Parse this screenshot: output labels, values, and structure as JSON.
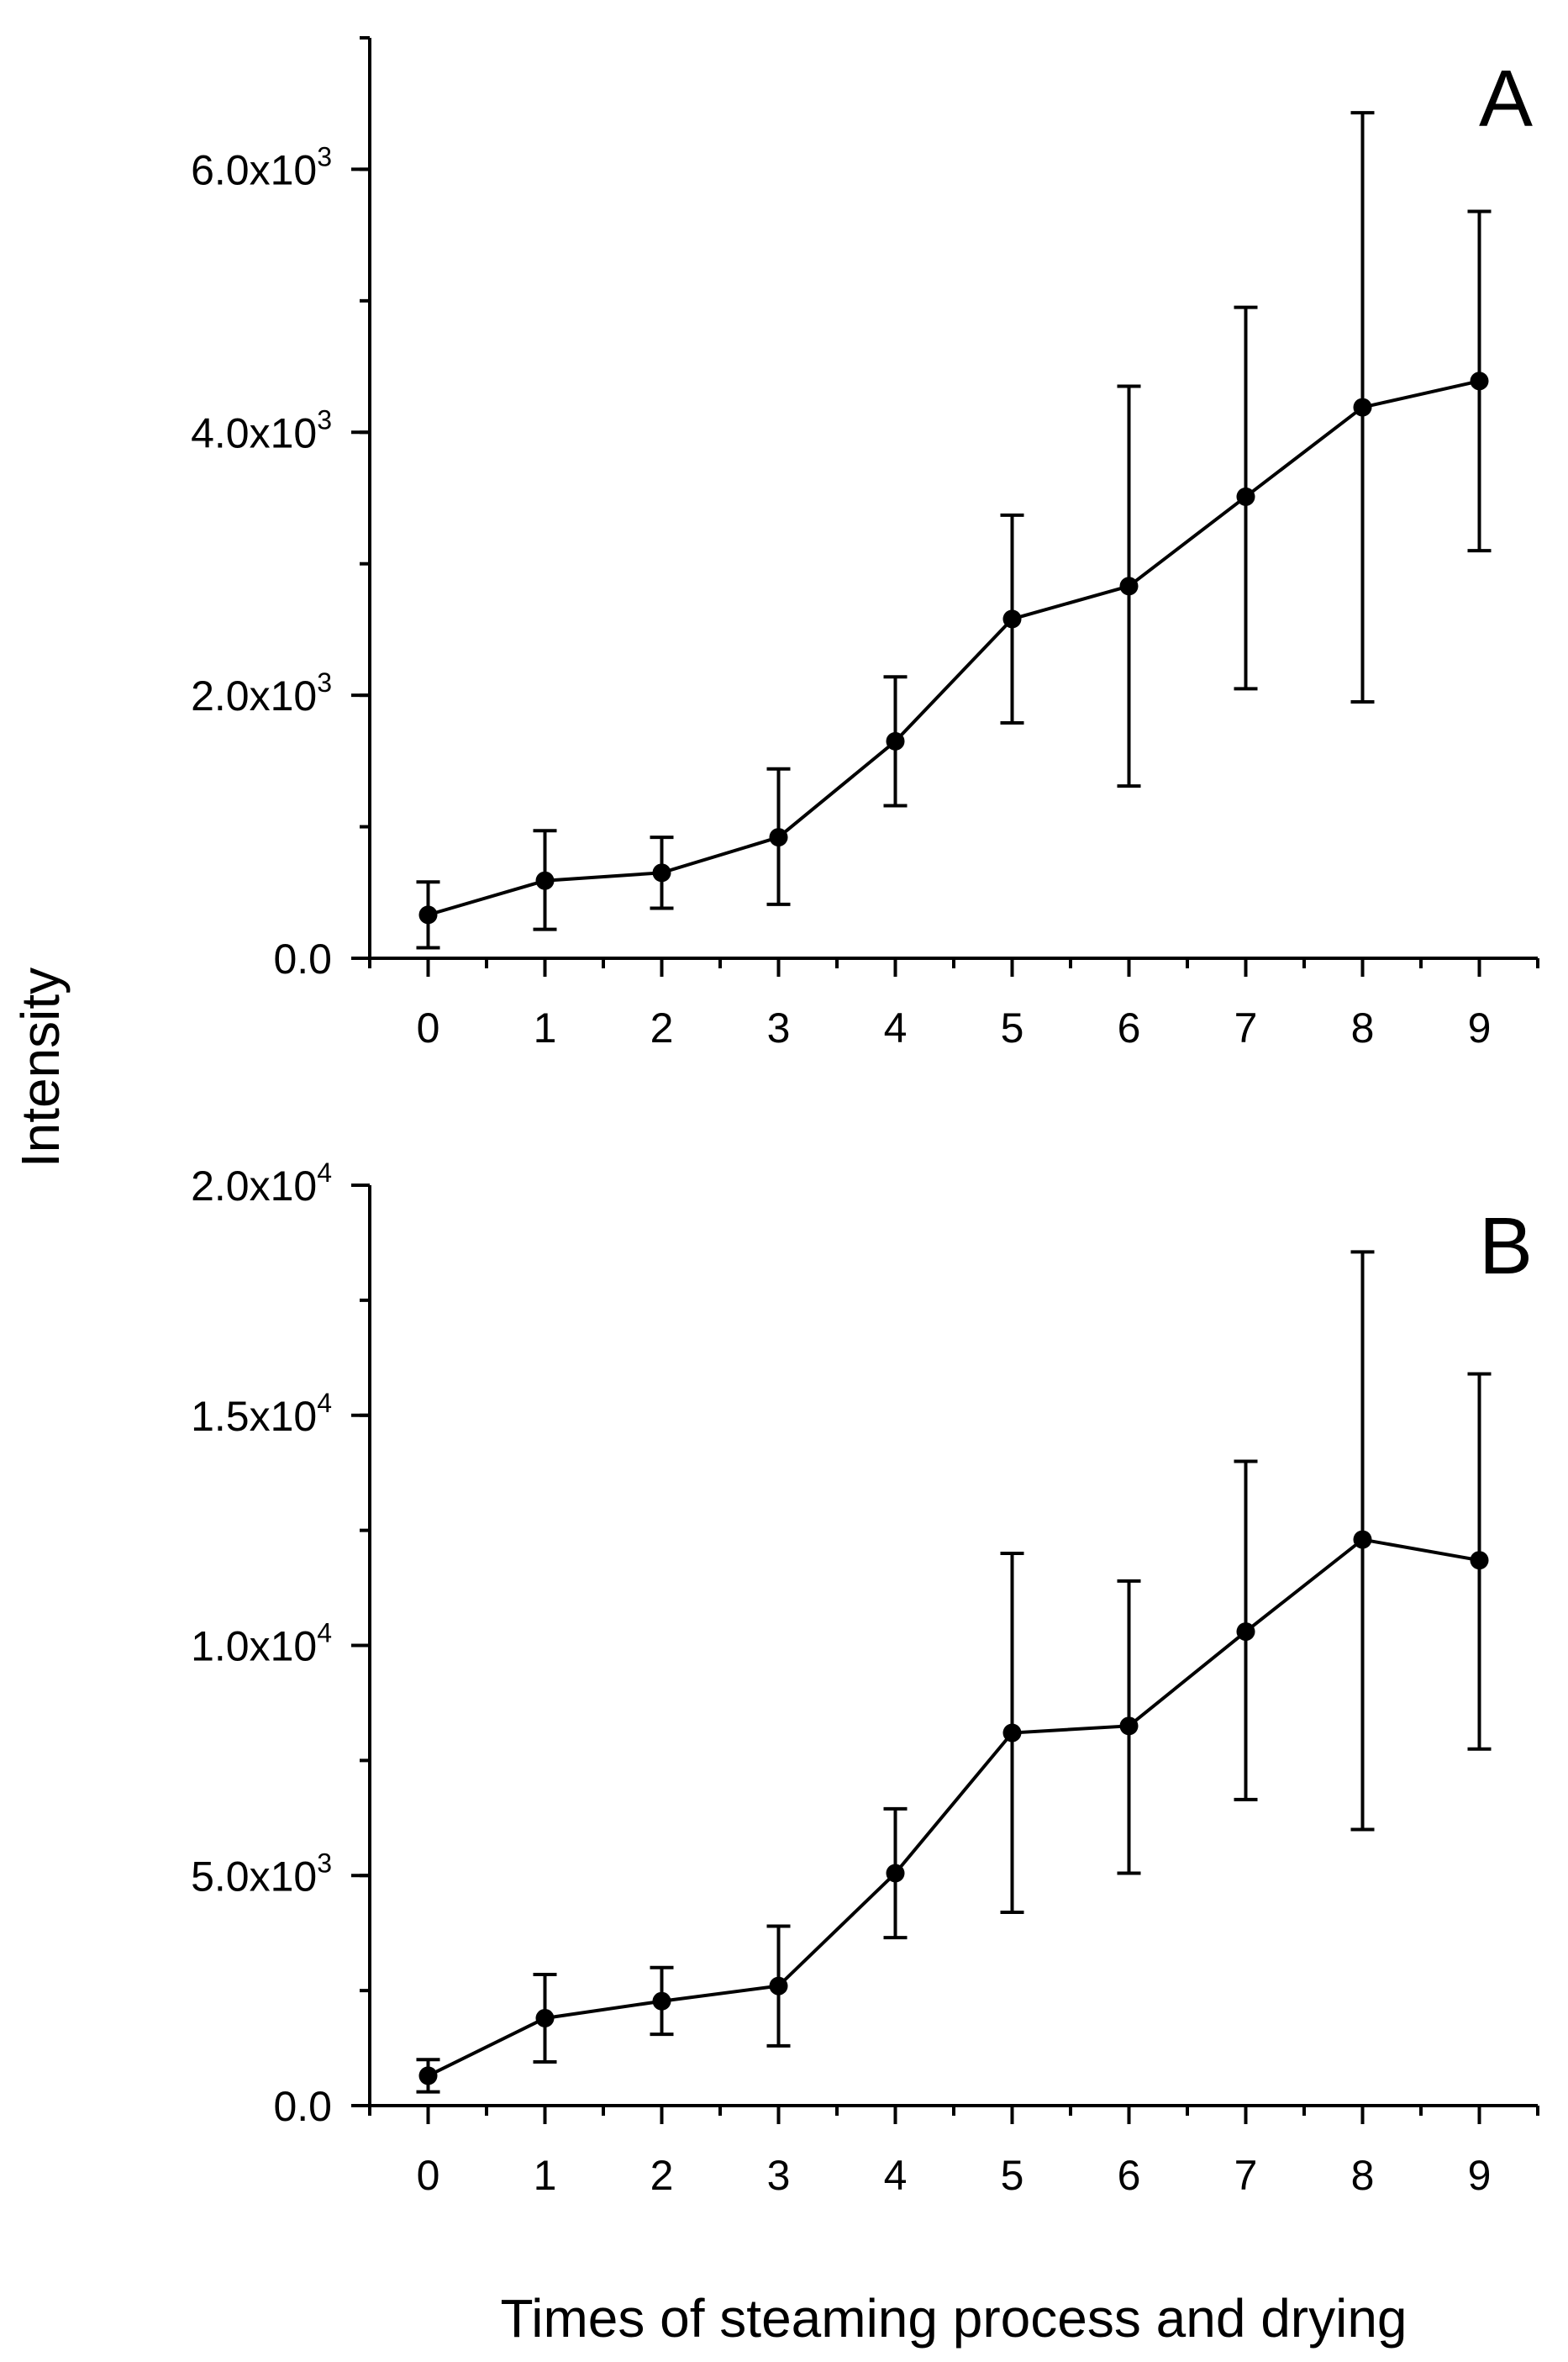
{
  "chart_data": [
    {
      "type": "line",
      "panel_label": "A",
      "x": [
        0,
        1,
        2,
        3,
        4,
        5,
        6,
        7,
        8,
        9
      ],
      "xlim": [
        -0.5,
        9.5
      ],
      "x_ticks": [
        "0",
        "1",
        "2",
        "3",
        "4",
        "5",
        "6",
        "7",
        "8",
        "9"
      ],
      "ylim": [
        0,
        7000
      ],
      "y_ticks": [
        {
          "value": 0,
          "mantissa": "0.0",
          "exp": ""
        },
        {
          "value": 2000,
          "mantissa": "2.0x10",
          "exp": "3"
        },
        {
          "value": 4000,
          "mantissa": "4.0x10",
          "exp": "3"
        },
        {
          "value": 6000,
          "mantissa": "6.0x10",
          "exp": "3"
        }
      ],
      "y_minor_step": 1000,
      "series": [
        {
          "values": [
            330,
            590,
            650,
            920,
            1650,
            2580,
            2830,
            3510,
            4190,
            4390
          ],
          "error_low": [
            80,
            220,
            380,
            410,
            1160,
            1790,
            1310,
            2050,
            1950,
            3100
          ],
          "error_high": [
            580,
            970,
            920,
            1440,
            2140,
            3370,
            4350,
            4950,
            6430,
            5680
          ]
        }
      ]
    },
    {
      "type": "line",
      "panel_label": "B",
      "x": [
        0,
        1,
        2,
        3,
        4,
        5,
        6,
        7,
        8,
        9
      ],
      "xlim": [
        -0.5,
        9.5
      ],
      "x_ticks": [
        "0",
        "1",
        "2",
        "3",
        "4",
        "5",
        "6",
        "7",
        "8",
        "9"
      ],
      "ylim": [
        0,
        20000
      ],
      "y_ticks": [
        {
          "value": 0,
          "mantissa": "0.0",
          "exp": ""
        },
        {
          "value": 5000,
          "mantissa": "5.0x10",
          "exp": "3"
        },
        {
          "value": 10000,
          "mantissa": "1.0x10",
          "exp": "4"
        },
        {
          "value": 15000,
          "mantissa": "1.5x10",
          "exp": "4"
        },
        {
          "value": 20000,
          "mantissa": "2.0x10",
          "exp": "4"
        }
      ],
      "y_minor_step": 2500,
      "series": [
        {
          "values": [
            650,
            1900,
            2270,
            2600,
            5050,
            8100,
            8250,
            10300,
            12300,
            11850
          ],
          "error_low": [
            300,
            950,
            1550,
            1300,
            3650,
            4200,
            5050,
            6650,
            6000,
            7750
          ],
          "error_high": [
            1000,
            2850,
            3000,
            3900,
            6450,
            12000,
            11400,
            14000,
            18550,
            15900
          ]
        }
      ]
    }
  ],
  "ylabel": "Intensity",
  "xlabel": "Times of steaming process and drying"
}
